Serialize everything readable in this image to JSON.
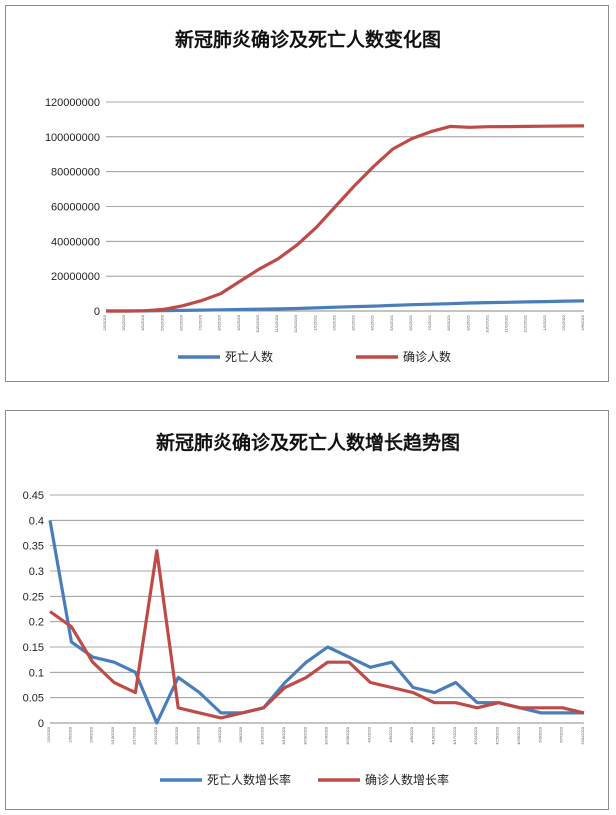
{
  "chart_data": [
    {
      "type": "line",
      "title": "新冠肺炎确诊及死亡人数变化图",
      "xlabel": "",
      "ylabel": "",
      "ylim": [
        0,
        120000000
      ],
      "yticks": [
        "0",
        "20000000",
        "40000000",
        "60000000",
        "80000000",
        "100000000",
        "120000000"
      ],
      "grid": true,
      "legend": "bottom",
      "x": [
        "2/1/2020",
        "3/1/2020",
        "4/1/2020",
        "5/1/2020",
        "6/1/2020",
        "7/1/2020",
        "8/1/2020",
        "9/1/2020",
        "10/1/2020",
        "11/1/2020",
        "12/1/2020",
        "1/1/2021",
        "2/1/2021",
        "3/1/2021",
        "4/1/2021",
        "5/1/2021",
        "6/1/2021",
        "7/1/2021",
        "8/1/2021",
        "9/1/2021",
        "10/1/2021",
        "11/1/2021",
        "12/1/2021",
        "1/1/2022",
        "2/1/2022",
        "2/9/2022"
      ],
      "series": [
        {
          "name": "死亡人数",
          "color": "#4a7ebb",
          "values": [
            0,
            3000,
            40000,
            230000,
            370000,
            510000,
            680000,
            850000,
            1010000,
            1190000,
            1450000,
            1800000,
            2200000,
            2500000,
            2800000,
            3200000,
            3600000,
            3900000,
            4200000,
            4600000,
            4800000,
            5000000,
            5200000,
            5400000,
            5700000,
            5800000
          ]
        },
        {
          "name": "确诊人数",
          "color": "#be4b48",
          "values": [
            0,
            10000,
            90000,
            900000,
            3000000,
            6000000,
            10000000,
            17000000,
            24000000,
            30000000,
            38000000,
            48000000,
            60000000,
            72000000,
            83000000,
            93000000,
            99000000,
            103000000,
            106000000,
            105500000,
            105800000,
            105900000,
            106000000,
            106100000,
            106200000,
            106300000
          ]
        }
      ]
    },
    {
      "type": "line",
      "title": "新冠肺炎确诊及死亡人数增长趋势图",
      "xlabel": "",
      "ylabel": "",
      "ylim": [
        0,
        0.45
      ],
      "yticks": [
        "0",
        "0.05",
        "0.1",
        "0.15",
        "0.2",
        "0.25",
        "0.3",
        "0.35",
        "0.4",
        "0.45"
      ],
      "grid": true,
      "legend": "bottom",
      "x": [
        "2/1/2020",
        "2/5/2020",
        "2/9/2020",
        "2/13/2020",
        "2/17/2020",
        "2/21/2020",
        "2/25/2020",
        "2/29/2020",
        "3/4/2020",
        "3/8/2020",
        "3/12/2020",
        "3/16/2020",
        "3/20/2020",
        "3/24/2020",
        "3/28/2020",
        "4/1/2020",
        "4/5/2020",
        "4/9/2020",
        "4/13/2020",
        "4/17/2020",
        "4/21/2020",
        "4/25/2020",
        "4/29/2020",
        "5/3/2020",
        "5/7/2020",
        "5/11/2020"
      ],
      "series": [
        {
          "name": "死亡人数增长率",
          "color": "#4a7ebb",
          "values": [
            0.4,
            0.16,
            0.13,
            0.12,
            0.1,
            0.0,
            0.09,
            0.06,
            0.02,
            0.02,
            0.03,
            0.08,
            0.12,
            0.15,
            0.13,
            0.11,
            0.12,
            0.07,
            0.06,
            0.08,
            0.04,
            0.04,
            0.03,
            0.02,
            0.02,
            0.02
          ]
        },
        {
          "name": "确诊人数增长率",
          "color": "#be4b48",
          "values": [
            0.22,
            0.19,
            0.12,
            0.08,
            0.06,
            0.34,
            0.03,
            0.02,
            0.01,
            0.02,
            0.03,
            0.07,
            0.09,
            0.12,
            0.12,
            0.08,
            0.07,
            0.06,
            0.04,
            0.04,
            0.03,
            0.04,
            0.03,
            0.03,
            0.03,
            0.02
          ]
        }
      ]
    }
  ]
}
